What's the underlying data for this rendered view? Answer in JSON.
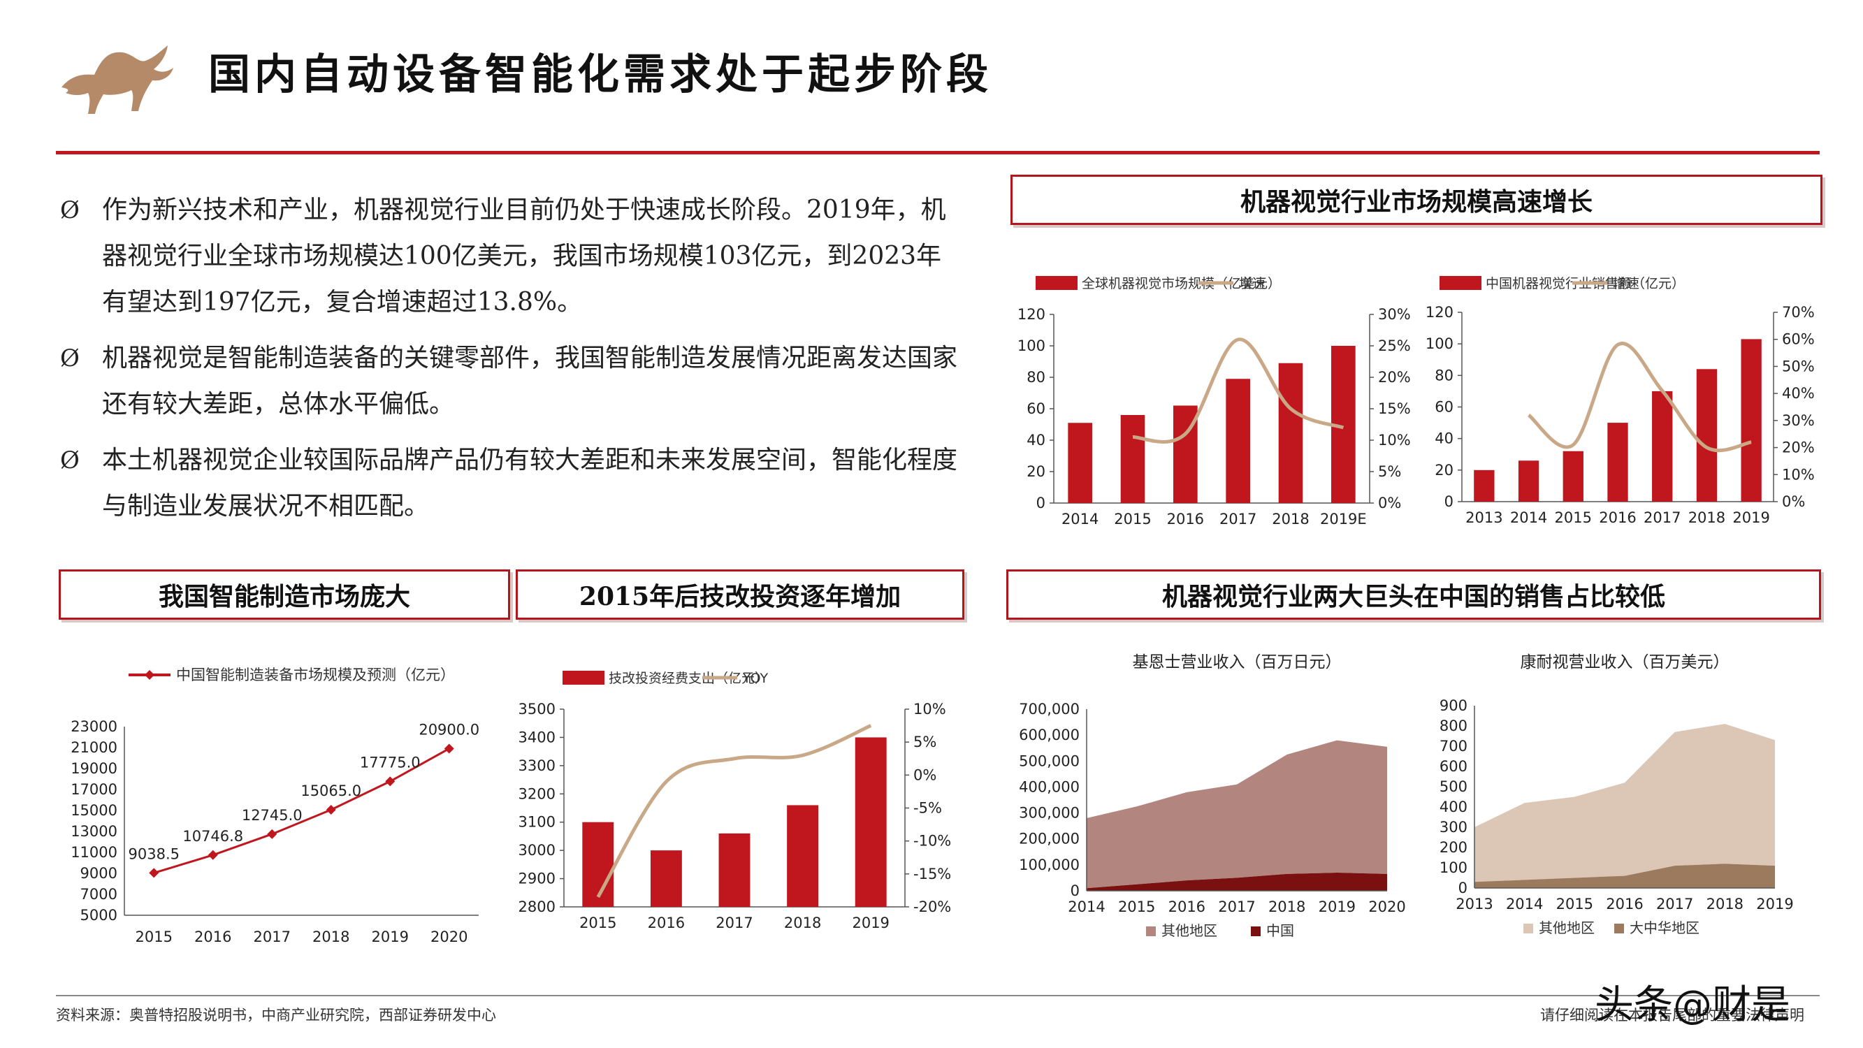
{
  "header": {
    "title": "国内自动设备智能化需求处于起步阶段"
  },
  "bullets": [
    {
      "text": "作为新兴技术和产业，机器视觉行业目前仍处于快速成长阶段。2019年，机器视觉行业全球市场规模达100亿美元，我国市场规模103亿元，到2023年有望达到197亿元，复合增速超过13.8%。"
    },
    {
      "text": "机器视觉是智能制造装备的关键零部件，我国智能制造发展情况距离发达国家还有较大差距，总体水平偏低。"
    },
    {
      "text": "本土机器视觉企业较国际品牌产品仍有较大差距和未来发展空间，智能化程度与制造业发展状况不相匹配。"
    }
  ],
  "bullet_glyph": "Ø",
  "sections": {
    "top_right": "机器视觉行业市场规模高速增长",
    "bottom_left": "我国智能制造市场庞大",
    "bottom_mid": "2015年后技改投资逐年增加",
    "bottom_right": "机器视觉行业两大巨头在中国的销售占比较低"
  },
  "colors": {
    "red": "#c0171e",
    "tan": "#c9a888",
    "rose": "#b3857f",
    "darkred": "#7a1010",
    "lighttan": "#dcc6b5",
    "brown": "#9b7a5e",
    "gold": "#b8926a"
  },
  "chart_data": [
    {
      "type": "bar",
      "categories": [
        "2014",
        "2015",
        "2016",
        "2017",
        "2018",
        "2019E"
      ],
      "series": [
        {
          "name": "全球机器视觉市场规模（亿美元）",
          "values": [
            51,
            56,
            62,
            79,
            89,
            100
          ],
          "axis": "left"
        },
        {
          "name": "增速",
          "type": "line",
          "values": [
            null,
            10.5,
            11,
            26,
            15,
            12
          ],
          "axis": "right"
        }
      ],
      "ylim": [
        0,
        120
      ],
      "yticks": [
        0,
        20,
        40,
        60,
        80,
        100,
        120
      ],
      "y2lim": [
        0,
        30
      ],
      "y2ticks": [
        "0%",
        "5%",
        "10%",
        "15%",
        "20%",
        "25%",
        "30%"
      ]
    },
    {
      "type": "bar",
      "categories": [
        "2013",
        "2014",
        "2015",
        "2016",
        "2017",
        "2018",
        "2019"
      ],
      "series": [
        {
          "name": "中国机器视觉行业销售额（亿元）",
          "values": [
            20,
            26,
            32,
            50,
            70,
            84,
            103
          ],
          "axis": "left"
        },
        {
          "name": "增速",
          "type": "line",
          "values": [
            null,
            32,
            21,
            58,
            41,
            20,
            22
          ],
          "axis": "right"
        }
      ],
      "ylim": [
        0,
        120
      ],
      "yticks": [
        0,
        20,
        40,
        60,
        80,
        100,
        120
      ],
      "y2lim": [
        0,
        70
      ],
      "y2ticks": [
        "0%",
        "10%",
        "20%",
        "30%",
        "40%",
        "50%",
        "60%",
        "70%"
      ]
    },
    {
      "type": "line",
      "categories": [
        "2015",
        "2016",
        "2017",
        "2018",
        "2019",
        "2020"
      ],
      "series": [
        {
          "name": "中国智能制造装备市场规模及预测（亿元）",
          "values": [
            9038.5,
            10746.8,
            12745.0,
            15065.0,
            17775.0,
            20900.0
          ],
          "labels": [
            "9038.5",
            "10746.8",
            "12745.0",
            "15065.0",
            "17775.0",
            "20900.0"
          ]
        }
      ],
      "ylim": [
        5000,
        23000
      ],
      "yticks": [
        5000,
        7000,
        9000,
        11000,
        13000,
        15000,
        17000,
        19000,
        21000,
        23000
      ]
    },
    {
      "type": "bar",
      "categories": [
        "2015",
        "2016",
        "2017",
        "2018",
        "2019"
      ],
      "series": [
        {
          "name": "技改投资经费支出（亿元）",
          "values": [
            3100,
            3000,
            3060,
            3160,
            3400
          ],
          "axis": "left"
        },
        {
          "name": "YOY",
          "type": "line",
          "values": [
            -18.5,
            -1,
            2.5,
            3,
            7.5
          ],
          "axis": "right"
        }
      ],
      "ylim": [
        2800,
        3500
      ],
      "yticks": [
        2800,
        2900,
        3000,
        3100,
        3200,
        3300,
        3400,
        3500
      ],
      "y2lim": [
        -20,
        10
      ],
      "y2ticks": [
        "-20%",
        "-15%",
        "-10%",
        "-5%",
        "0%",
        "5%",
        "10%"
      ]
    },
    {
      "type": "area",
      "title": "基恩士营业收入（百万日元）",
      "categories": [
        "2014",
        "2015",
        "2016",
        "2017",
        "2018",
        "2019",
        "2020"
      ],
      "series": [
        {
          "name": "其他地区",
          "values": [
            270000,
            300000,
            340000,
            360000,
            460000,
            510000,
            490000
          ]
        },
        {
          "name": "中国",
          "values": [
            10000,
            25000,
            40000,
            50000,
            65000,
            70000,
            65000
          ]
        }
      ],
      "ylim": [
        0,
        700000
      ],
      "yticks": [
        "0",
        "100,000",
        "200,000",
        "300,000",
        "400,000",
        "500,000",
        "600,000",
        "700,000"
      ]
    },
    {
      "type": "area",
      "title": "康耐视营业收入（百万美元）",
      "categories": [
        "2013",
        "2014",
        "2015",
        "2016",
        "2017",
        "2018",
        "2019"
      ],
      "series": [
        {
          "name": "其他地区",
          "values": [
            270,
            380,
            400,
            460,
            660,
            690,
            620
          ]
        },
        {
          "name": "大中华地区",
          "values": [
            30,
            40,
            50,
            60,
            110,
            120,
            110
          ]
        }
      ],
      "ylim": [
        0,
        900
      ],
      "yticks": [
        "0",
        "100",
        "200",
        "300",
        "400",
        "500",
        "600",
        "700",
        "800",
        "900"
      ]
    }
  ],
  "footer": {
    "source": "资料来源：奥普特招股说明书，中商产业研究院，西部证券研发中心",
    "note": "请仔细阅读在本报告尾部的重要法律声明",
    "watermark": "头条@财是"
  }
}
